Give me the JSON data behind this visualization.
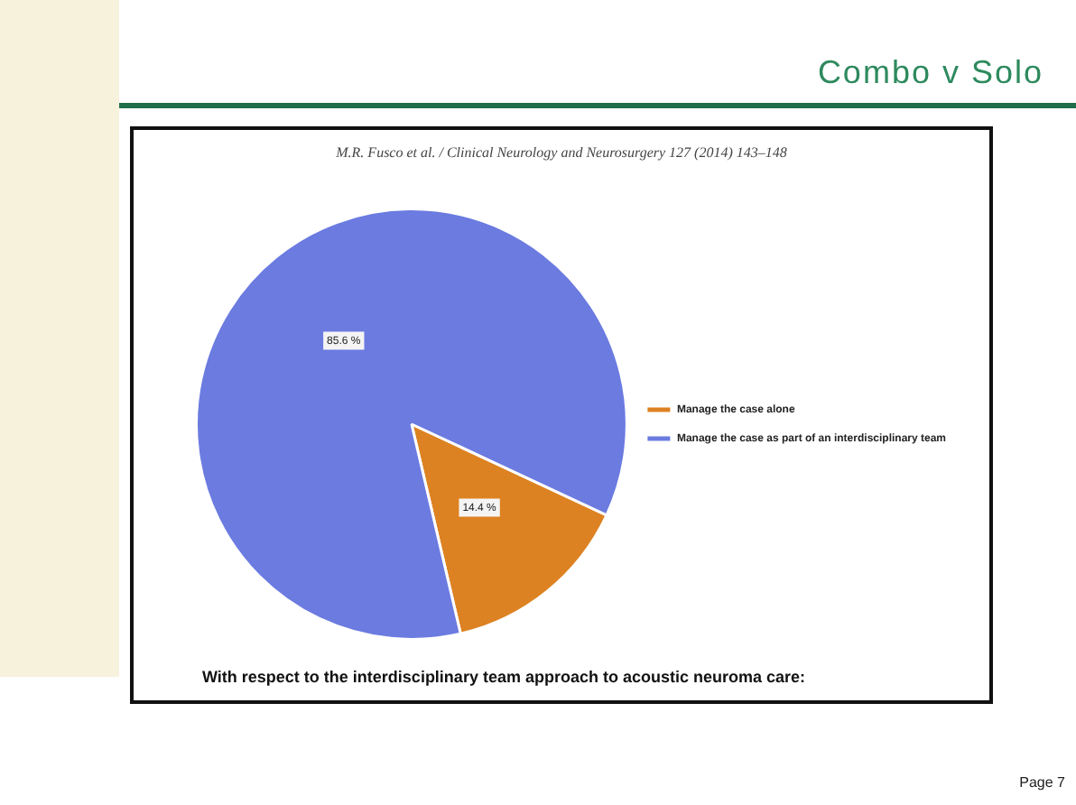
{
  "chart_data": {
    "type": "pie",
    "title": "Combo v Solo",
    "categories": [
      "Manage the case alone",
      "Manage the case as part of an interdisciplinary team"
    ],
    "values": [
      14.4,
      85.6
    ],
    "colors": [
      "#dd8222",
      "#6b7be0"
    ],
    "value_labels": [
      "14.4 %",
      "85.6 %"
    ],
    "legend": "right",
    "annotations": [
      "M.R. Fusco et al. / Clinical Neurology and Neurosurgery 127 (2014) 143–148",
      "With respect to the interdisciplinary team approach to acoustic neuroma care:",
      "Page 7"
    ]
  }
}
